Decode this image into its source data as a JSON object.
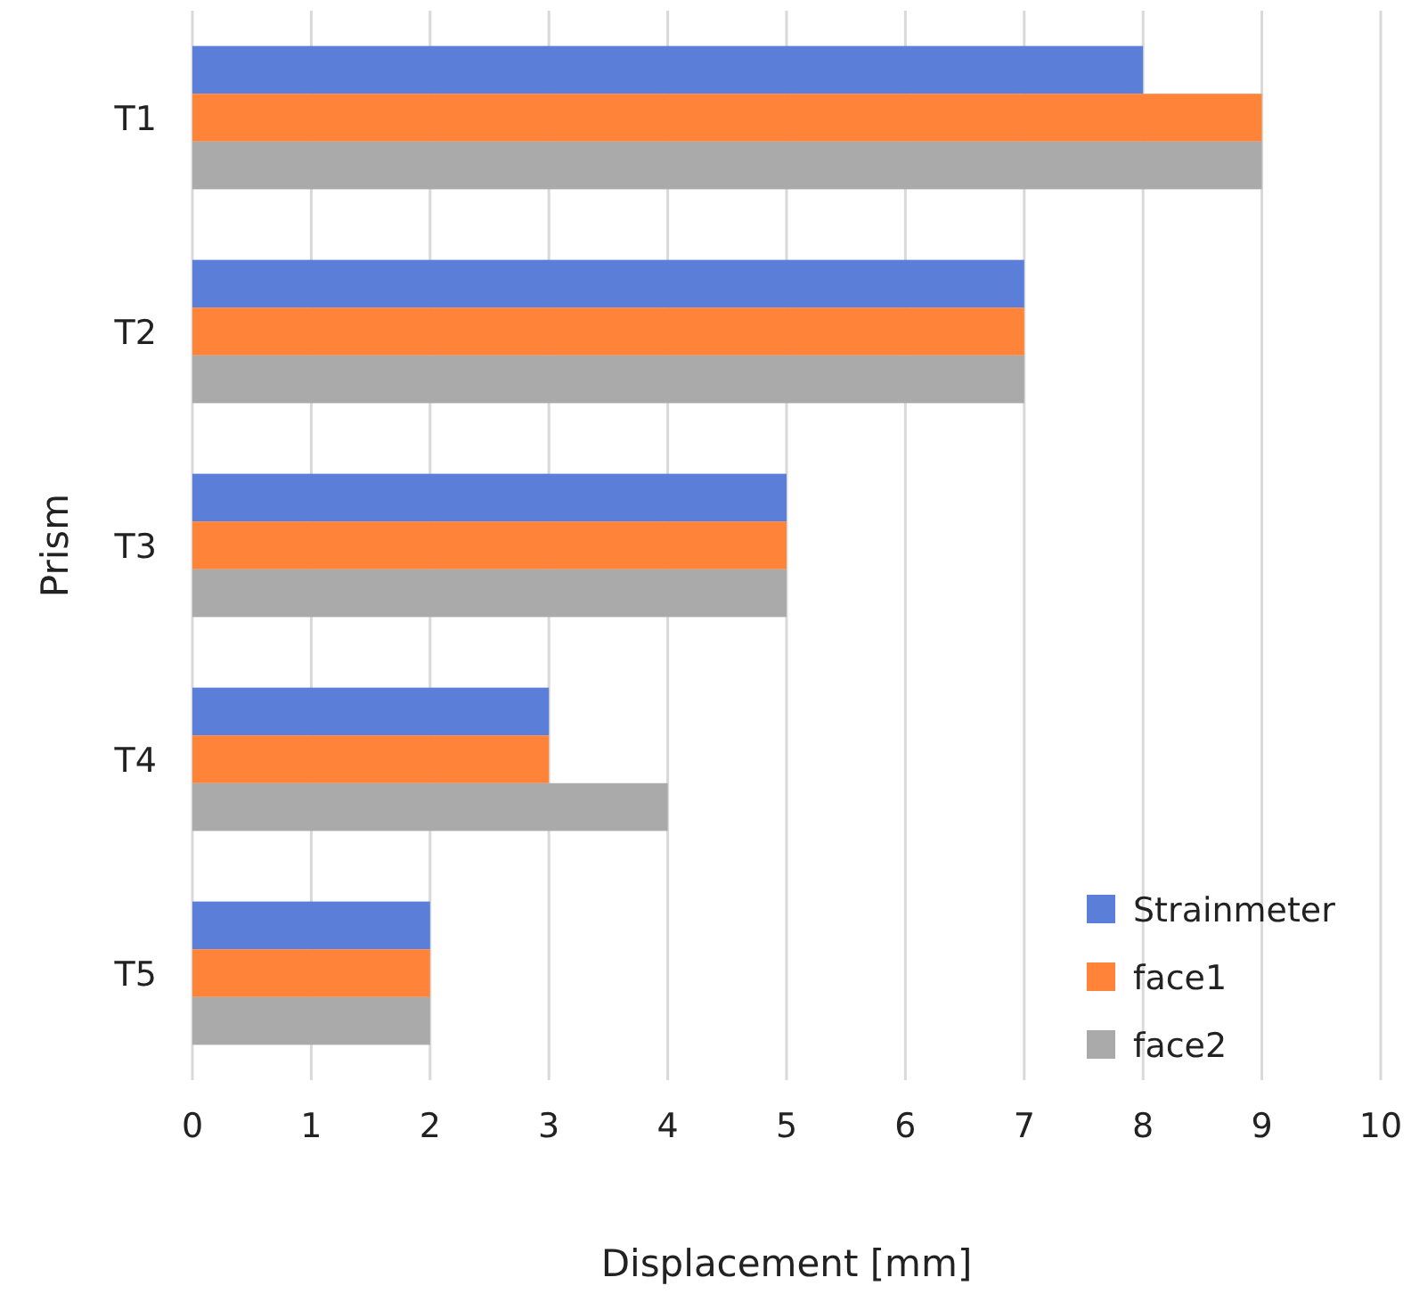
{
  "chart_data": {
    "type": "bar",
    "orientation": "horizontal",
    "xlabel": "Displacement [mm]",
    "ylabel": "Prism",
    "categories": [
      "T1",
      "T2",
      "T3",
      "T4",
      "T5"
    ],
    "series": [
      {
        "name": "Strainmeter",
        "color": "#5b7fd9",
        "values": [
          8,
          7,
          5,
          3,
          2
        ]
      },
      {
        "name": "face1",
        "color": "#ff8439",
        "values": [
          9,
          7,
          5,
          3,
          2
        ]
      },
      {
        "name": "face2",
        "color": "#aaaaaa",
        "values": [
          9,
          7,
          5,
          4,
          2
        ]
      }
    ],
    "xlim": [
      0,
      10
    ],
    "xticks": [
      0,
      1,
      2,
      3,
      4,
      5,
      6,
      7,
      8,
      9,
      10
    ],
    "grid": "x",
    "legend": "bottom right"
  }
}
